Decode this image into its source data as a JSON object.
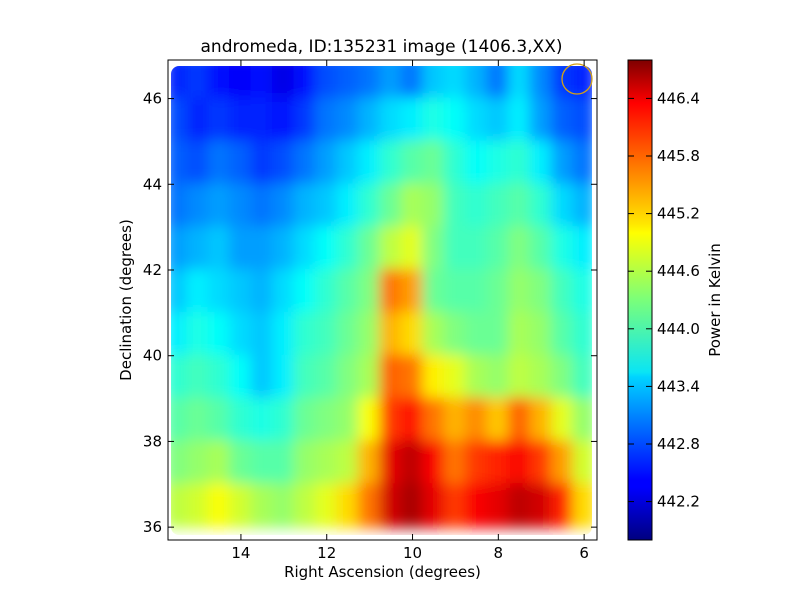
{
  "chart_data": {
    "type": "heatmap",
    "title": "andromeda, ID:135231 image (1406.3,XX)",
    "xlabel": "Right Ascension (degrees)",
    "ylabel": "Declination (degrees)",
    "xlim": [
      15.7,
      5.7
    ],
    "ylim": [
      35.7,
      46.9
    ],
    "x_ticks": [
      14,
      12,
      10,
      8,
      6
    ],
    "y_ticks": [
      36,
      38,
      40,
      42,
      44,
      46
    ],
    "colorbar": {
      "label": "Power in Kelvin",
      "range": [
        441.8,
        446.8
      ],
      "ticks": [
        442.2,
        442.8,
        443.4,
        444.0,
        444.6,
        445.2,
        445.8,
        446.4
      ],
      "tick_labels": [
        "442.2",
        "442.8",
        "443.4",
        "444.0",
        "444.6",
        "445.2",
        "445.8",
        "446.4"
      ],
      "colormap": "jet"
    },
    "ra_samples": [
      15.5,
      15.0,
      14.5,
      14.0,
      13.5,
      13.0,
      12.5,
      12.0,
      11.5,
      11.0,
      10.5,
      10.0,
      9.5,
      9.0,
      8.5,
      8.0,
      7.5,
      7.0,
      6.5,
      6.0
    ],
    "dec_samples": [
      46.5,
      45.5,
      44.5,
      43.5,
      42.5,
      41.5,
      40.5,
      39.5,
      38.5,
      37.5,
      36.5
    ],
    "values": [
      [
        442.6,
        442.7,
        442.5,
        442.4,
        442.5,
        442.3,
        442.5,
        442.8,
        442.9,
        443.0,
        443.2,
        443.0,
        443.4,
        443.5,
        443.3,
        443.0,
        443.5,
        443.1,
        442.7,
        442.6
      ],
      [
        442.8,
        442.6,
        442.7,
        442.6,
        442.6,
        442.5,
        442.7,
        443.0,
        443.1,
        443.3,
        443.5,
        443.6,
        443.8,
        443.7,
        443.5,
        443.4,
        443.6,
        443.2,
        442.9,
        442.8
      ],
      [
        442.9,
        442.8,
        443.0,
        442.9,
        442.7,
        442.8,
        443.0,
        443.2,
        443.4,
        443.6,
        443.9,
        444.1,
        444.2,
        443.9,
        443.7,
        443.8,
        443.9,
        443.6,
        443.2,
        443.0
      ],
      [
        443.0,
        443.1,
        443.2,
        443.1,
        443.0,
        443.1,
        443.3,
        443.4,
        443.6,
        443.9,
        444.2,
        444.5,
        444.4,
        444.0,
        443.9,
        444.0,
        444.1,
        443.9,
        443.5,
        443.3
      ],
      [
        443.2,
        443.3,
        443.4,
        443.2,
        443.2,
        443.3,
        443.5,
        443.7,
        443.9,
        444.2,
        444.6,
        444.8,
        444.3,
        444.0,
        444.0,
        444.1,
        444.3,
        444.1,
        443.8,
        443.6
      ],
      [
        443.4,
        443.6,
        443.5,
        443.4,
        443.3,
        443.5,
        443.7,
        443.9,
        444.1,
        444.3,
        445.6,
        445.4,
        444.2,
        444.1,
        444.1,
        444.2,
        444.4,
        444.3,
        444.0,
        443.8
      ],
      [
        443.6,
        443.8,
        443.7,
        443.5,
        443.4,
        443.6,
        443.9,
        444.0,
        444.2,
        444.4,
        445.3,
        445.1,
        444.5,
        444.3,
        444.2,
        444.2,
        444.5,
        444.4,
        444.1,
        443.9
      ],
      [
        443.9,
        444.0,
        443.9,
        443.7,
        443.4,
        443.6,
        444.0,
        444.1,
        444.3,
        444.5,
        445.7,
        445.6,
        445.0,
        444.8,
        444.5,
        444.4,
        444.6,
        444.5,
        444.3,
        444.0
      ],
      [
        444.1,
        444.2,
        444.1,
        443.9,
        443.8,
        443.9,
        444.2,
        444.3,
        444.4,
        444.9,
        445.9,
        446.1,
        445.6,
        445.3,
        445.5,
        445.2,
        445.7,
        445.3,
        444.8,
        444.4
      ],
      [
        444.3,
        444.4,
        444.5,
        444.2,
        444.1,
        444.1,
        444.4,
        444.5,
        444.6,
        445.3,
        446.3,
        446.5,
        446.2,
        445.6,
        445.9,
        446.0,
        446.2,
        445.9,
        445.4,
        444.7
      ],
      [
        444.6,
        444.7,
        444.9,
        444.7,
        444.5,
        444.4,
        444.6,
        444.8,
        445.1,
        445.6,
        446.4,
        446.6,
        446.3,
        445.9,
        446.2,
        446.3,
        446.5,
        446.4,
        446.0,
        445.1
      ]
    ],
    "beam_marker": {
      "shape": "circle",
      "color": "#d4a017"
    }
  }
}
